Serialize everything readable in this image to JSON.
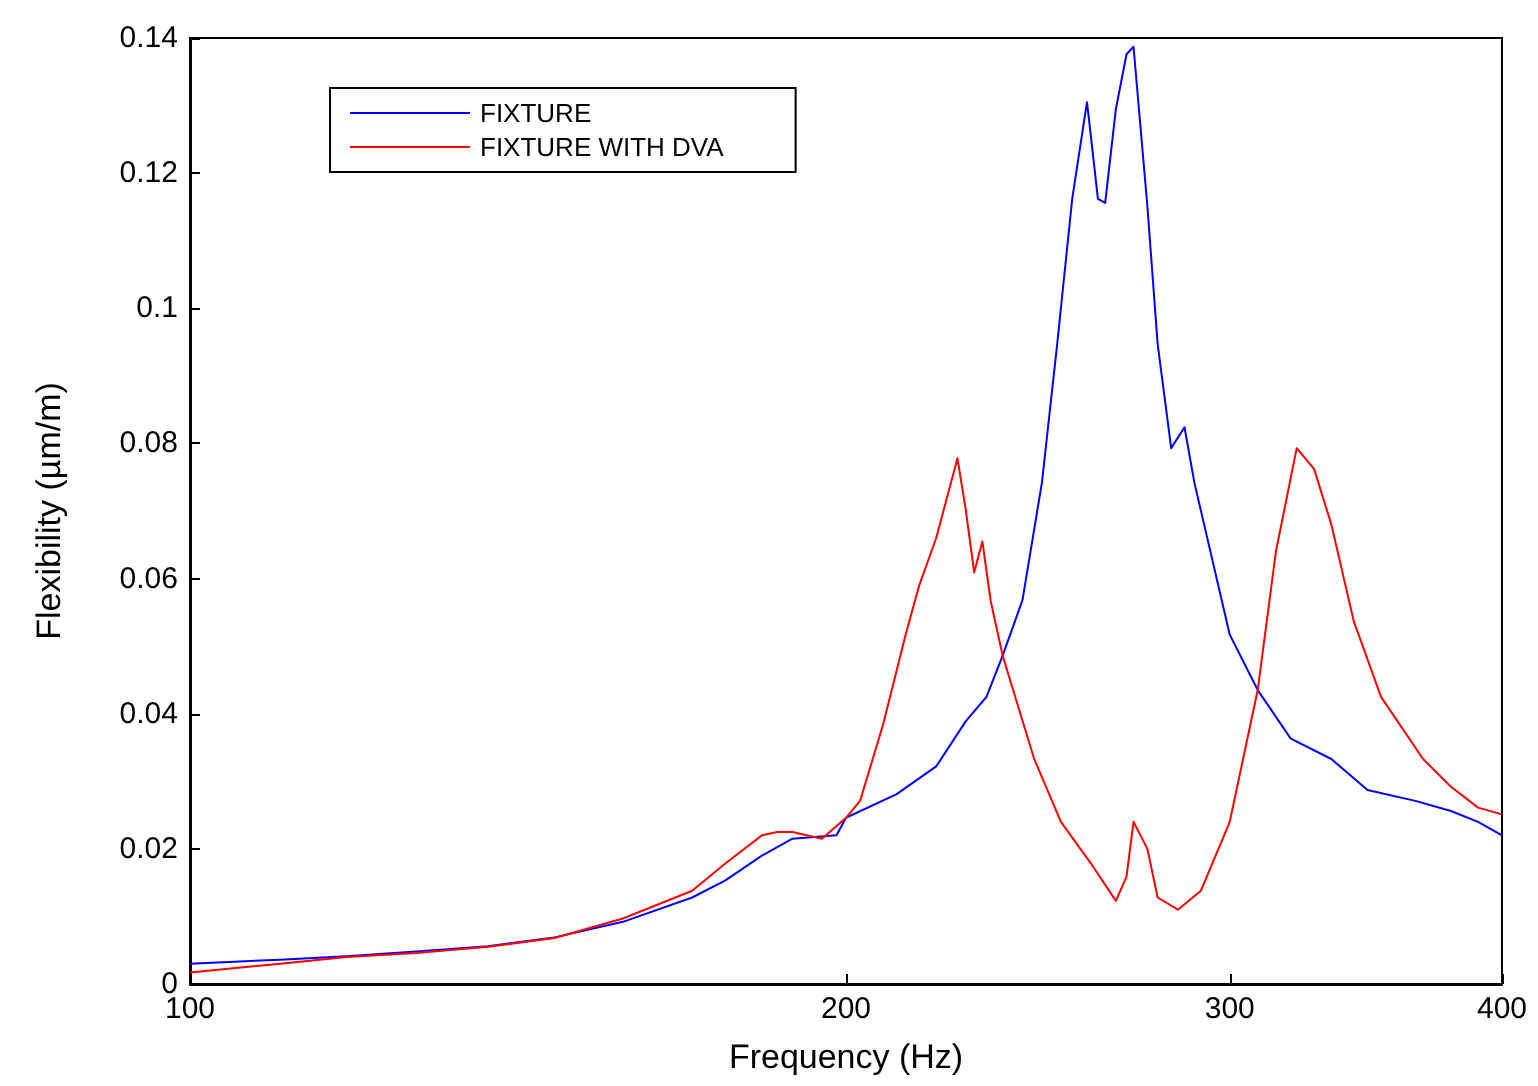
{
  "chart_data": {
    "type": "line",
    "xlabel": "Frequency (Hz)",
    "ylabel": "Flexibility (µm/m)",
    "log": "x",
    "xlim": [
      100,
      400
    ],
    "xticks": [
      100,
      200,
      300,
      400
    ],
    "ylim": [
      0,
      0.14
    ],
    "yticks": [
      0,
      0.02,
      0.04,
      0.06,
      0.08,
      0.1,
      0.12,
      0.14
    ],
    "grid": false,
    "legend": "top left",
    "marker": "none",
    "line_style": "solid",
    "series": [
      {
        "name": "FIXTURE",
        "color": "#0000ff",
        "x": [
          100,
          110,
          118,
          127,
          137,
          147,
          158,
          170,
          176,
          183,
          189,
          198,
          200,
          211,
          220,
          227,
          232,
          236,
          241,
          246,
          250,
          254,
          258,
          261,
          263,
          266,
          269,
          271,
          275,
          278,
          282,
          286,
          289,
          300,
          309,
          320,
          334,
          347,
          365,
          379,
          390,
          400
        ],
        "values": [
          0.003,
          0.0036,
          0.0041,
          0.0048,
          0.0056,
          0.0069,
          0.0092,
          0.0128,
          0.0153,
          0.019,
          0.0215,
          0.022,
          0.0246,
          0.0281,
          0.0322,
          0.0389,
          0.0425,
          0.0486,
          0.0568,
          0.0742,
          0.0947,
          0.1162,
          0.1305,
          0.1162,
          0.1156,
          0.1295,
          0.1376,
          0.1387,
          0.1151,
          0.0947,
          0.0793,
          0.0824,
          0.0742,
          0.0517,
          0.0435,
          0.0363,
          0.0333,
          0.0287,
          0.0271,
          0.0256,
          0.024,
          0.022
        ]
      },
      {
        "name": "FIXTURE WITH DVA",
        "color": "#ff0000",
        "x": [
          100,
          110,
          118,
          127,
          137,
          147,
          158,
          170,
          176,
          183,
          186,
          189,
          195,
          200,
          203,
          208,
          213,
          216,
          220,
          225,
          227,
          229,
          231,
          233,
          236,
          244,
          251,
          259,
          266,
          269,
          271,
          275,
          278,
          284,
          291,
          300,
          309,
          315,
          322,
          328,
          334,
          342,
          352,
          368,
          379,
          390,
          400
        ],
        "values": [
          0.0017,
          0.003,
          0.004,
          0.0046,
          0.0055,
          0.0068,
          0.0097,
          0.0138,
          0.0178,
          0.022,
          0.0225,
          0.0225,
          0.0215,
          0.0246,
          0.0271,
          0.0384,
          0.0517,
          0.0588,
          0.066,
          0.0778,
          0.0701,
          0.0609,
          0.0655,
          0.0568,
          0.0486,
          0.0333,
          0.024,
          0.0179,
          0.0123,
          0.0159,
          0.024,
          0.02,
          0.0128,
          0.011,
          0.0138,
          0.024,
          0.0435,
          0.064,
          0.0793,
          0.0762,
          0.068,
          0.0537,
          0.0425,
          0.0333,
          0.0292,
          0.0261,
          0.0251
        ]
      }
    ]
  }
}
